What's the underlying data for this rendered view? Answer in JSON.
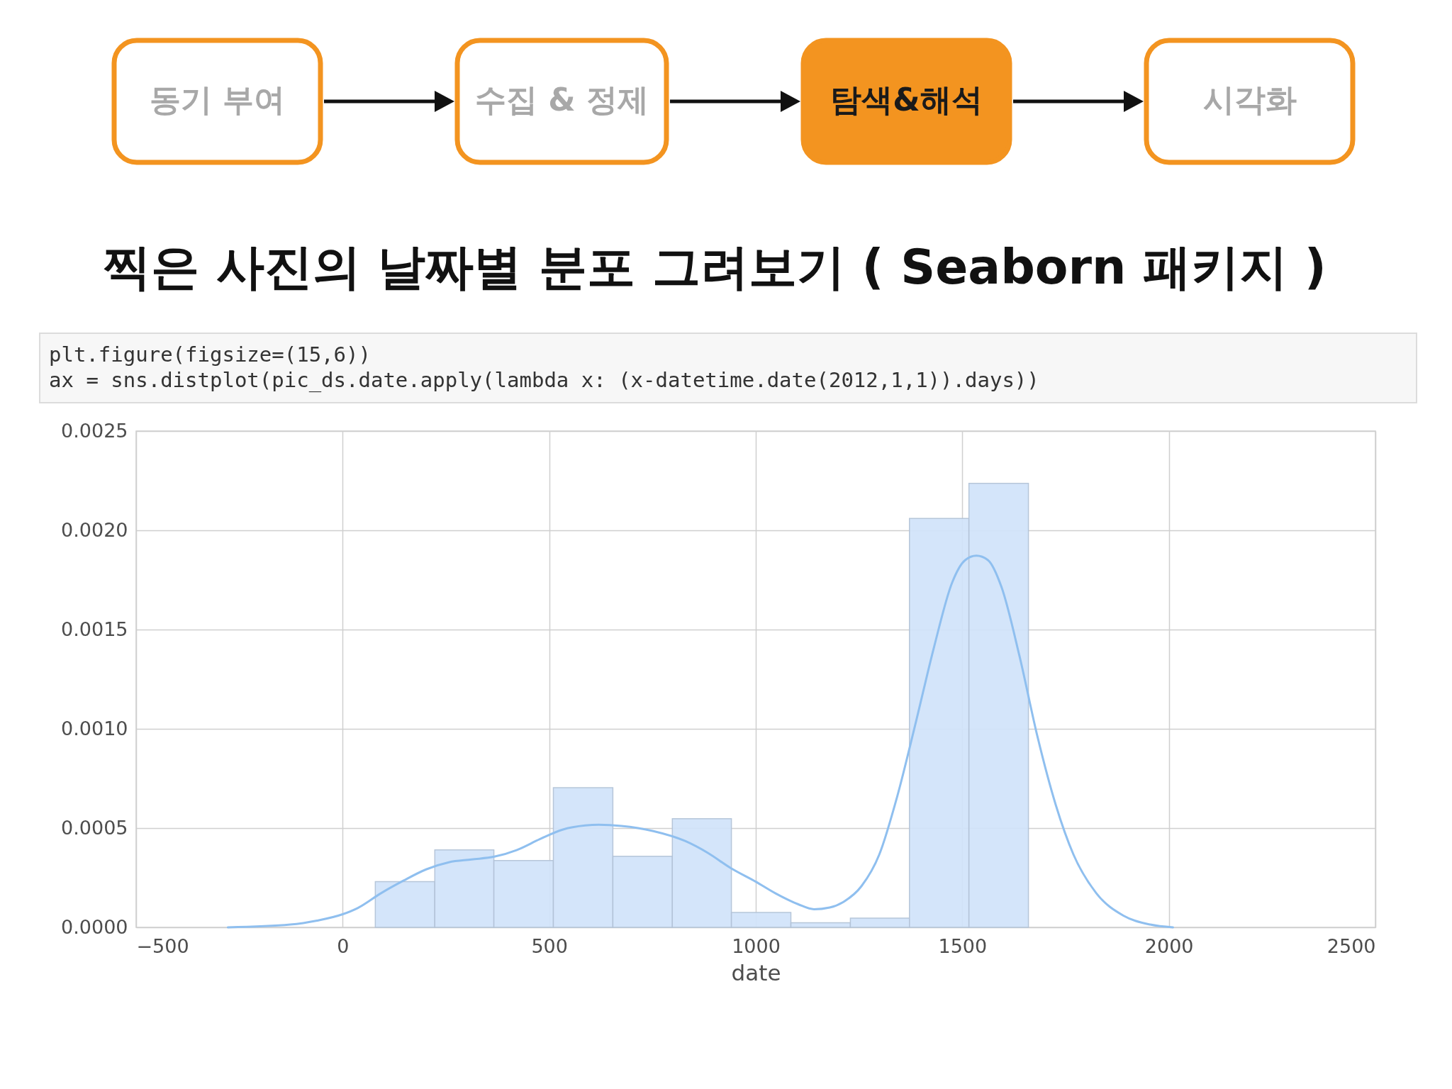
{
  "chart_data": {
    "type": "histogram",
    "title": "찍은 사진의 날짜별 분포 그려보기 ( Seaborn 패키지 )",
    "xlabel": "date",
    "annotations": [
      "동기 부여",
      "수집 & 정제",
      "탐색&해석",
      "시각화",
      "plt.figure(figsize=(15,6))",
      "ax = sns.distplot(pic_ds.date.apply(lambda x: (x-datetime.date(2012,1,1)).days))"
    ],
    "bins": [
      79,
      223,
      366,
      510,
      654,
      798,
      941,
      1085,
      1229,
      1372,
      1516,
      1660
    ],
    "series": [
      {
        "type": "histogram",
        "color": "#d2e4fa",
        "values": [
          0.00023,
          0.00039,
          0.000337,
          0.000704,
          0.000358,
          0.000547,
          7.5e-05,
          2.3e-05,
          4.6e-05,
          0.00206,
          0.002237
        ]
      },
      {
        "type": "line",
        "color": "#8fbfef",
        "x": [
          -278,
          -127,
          -62,
          0,
          37,
          92,
          147,
          202,
          257,
          312,
          367,
          422,
          477,
          532,
          587,
          620,
          675,
          752,
          829,
          884,
          939,
          1000,
          1048,
          1103,
          1141,
          1179,
          1212,
          1256,
          1299,
          1343,
          1387,
          1432,
          1475,
          1507,
          1534,
          1562,
          1595,
          1638,
          1682,
          1726,
          1769,
          1824,
          1890,
          1955,
          2010
        ],
        "values": [
          0.0,
          1.4e-05,
          3.4e-05,
          6.6e-05,
          9.8e-05,
          0.000171,
          0.000235,
          0.000292,
          0.000328,
          0.000342,
          0.000356,
          0.00039,
          0.000444,
          0.000492,
          0.000513,
          0.000517,
          0.000511,
          0.000485,
          0.000435,
          0.000375,
          0.000299,
          0.00023,
          0.000171,
          0.000116,
          9.1e-05,
          0.0001,
          0.000128,
          0.000208,
          0.000367,
          0.000664,
          0.001029,
          0.001416,
          0.001735,
          0.00185,
          0.001872,
          0.00185,
          0.001713,
          0.00137,
          0.00096,
          0.000618,
          0.000367,
          0.000173,
          5.9e-05,
          1.4e-05,
          0.0
        ]
      }
    ],
    "xlim": [
      -500,
      2500
    ],
    "xticks": [
      -500,
      0,
      500,
      1000,
      1500,
      2000,
      2500
    ],
    "ylim": [
      0,
      0.0025
    ],
    "yticks": [
      {
        "value": 0,
        "label": "0.0000"
      },
      {
        "value": 0.0005,
        "label": "0.0005"
      },
      {
        "value": 0.001,
        "label": "0.0010"
      },
      {
        "value": 0.0015,
        "label": "0.0015"
      },
      {
        "value": 0.002,
        "label": "0.0020"
      },
      {
        "value": 0.0025,
        "label": "0.0025"
      }
    ],
    "grid": true,
    "line_style": "solid"
  }
}
